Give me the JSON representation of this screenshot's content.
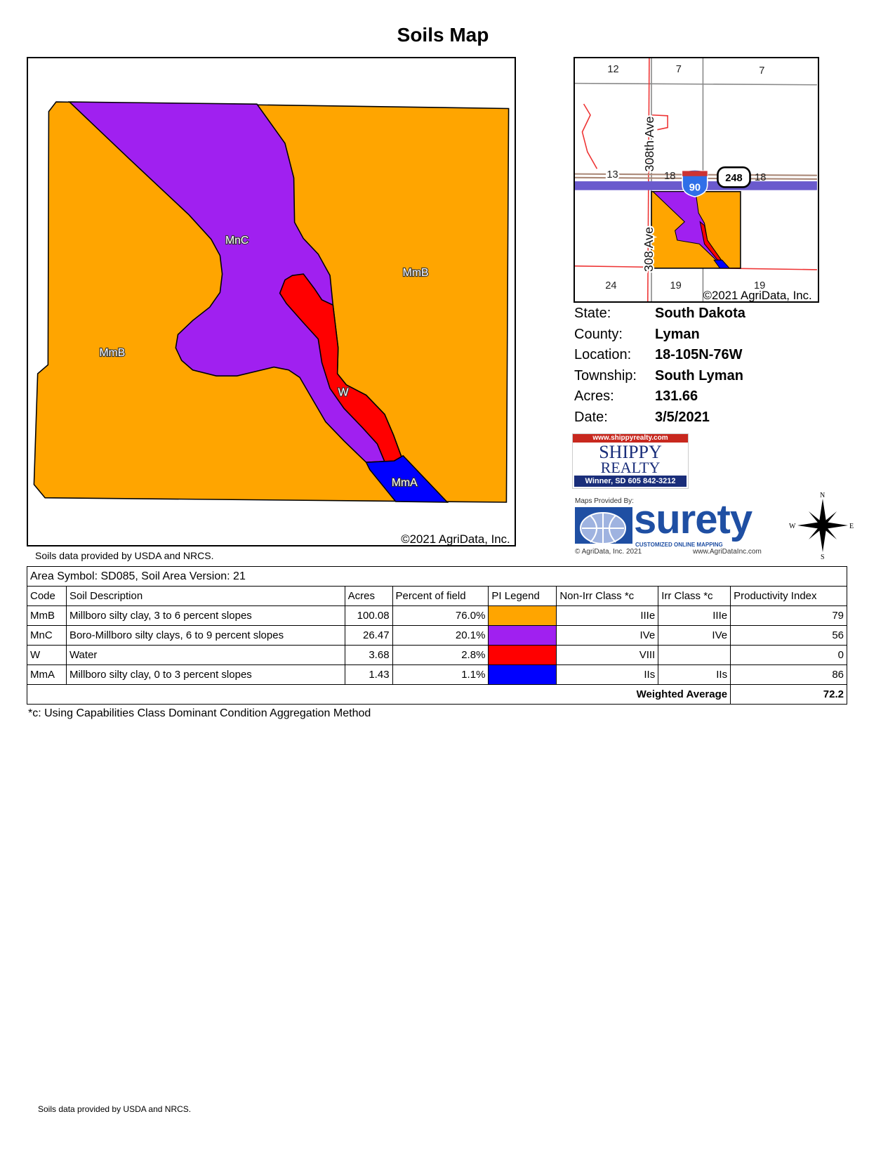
{
  "title": "Soils Map",
  "map": {
    "copyright": "©2021 AgriData, Inc.",
    "labels": {
      "mnc": "MnC",
      "mmb_east": "MmB",
      "mmb_west": "MmB",
      "w": "W",
      "mma": "MmA"
    }
  },
  "inset": {
    "sections": [
      "12",
      "7",
      "7",
      "13",
      "18",
      "18",
      "24",
      "19",
      "19"
    ],
    "road_308th": "308th Ave",
    "road_308": "308 Ave",
    "interstate": "90",
    "state_route": "248",
    "copyright": "©2021 AgriData, Inc."
  },
  "info": [
    {
      "label": "State:",
      "value": "South Dakota"
    },
    {
      "label": "County:",
      "value": "Lyman"
    },
    {
      "label": "Location:",
      "value": "18-105N-76W"
    },
    {
      "label": "Township:",
      "value": "South Lyman"
    },
    {
      "label": "Acres:",
      "value": "131.66"
    },
    {
      "label": "Date:",
      "value": "3/5/2021"
    }
  ],
  "shippy": {
    "url": "www.shippyrealty.com",
    "name1": "SHIPPY",
    "name2": "REALTY",
    "contact": "Winner, SD 605 842-3212"
  },
  "surety": {
    "provided_by": "Maps Provided By:",
    "brand": "surety",
    "tagline": "CUSTOMIZED ONLINE MAPPING",
    "copyright": "© AgriData, Inc. 2021",
    "url": "www.AgriDataInc.com"
  },
  "compass": {
    "n": "N",
    "s": "S",
    "e": "E",
    "w": "W"
  },
  "source_note": "Soils data provided by USDA and NRCS.",
  "table": {
    "area": "Area Symbol: SD085, Soil Area Version: 21",
    "headers": [
      "Code",
      "Soil Description",
      "Acres",
      "Percent of field",
      "PI Legend",
      "Non-Irr Class *c",
      "Irr Class *c",
      "Productivity Index"
    ],
    "rows": [
      {
        "code": "MmB",
        "desc": "Millboro silty clay, 3 to 6 percent slopes",
        "acres": "100.08",
        "pct": "76.0%",
        "color": "#FFA500",
        "nonirr": "IIIe",
        "irr": "IIIe",
        "pi": "79"
      },
      {
        "code": "MnC",
        "desc": "Boro-Millboro silty clays, 6 to 9 percent slopes",
        "acres": "26.47",
        "pct": "20.1%",
        "color": "#A020F0",
        "nonirr": "IVe",
        "irr": "IVe",
        "pi": "56"
      },
      {
        "code": "W",
        "desc": "Water",
        "acres": "3.68",
        "pct": "2.8%",
        "color": "#FF0000",
        "nonirr": "VIII",
        "irr": "",
        "pi": "0"
      },
      {
        "code": "MmA",
        "desc": "Millboro silty clay, 0 to 3 percent slopes",
        "acres": "1.43",
        "pct": "1.1%",
        "color": "#0000FF",
        "nonirr": "IIs",
        "irr": "IIs",
        "pi": "86"
      }
    ],
    "weighted_label": "Weighted Average",
    "weighted_value": "72.2"
  },
  "footnote": "*c:  Using Capabilities Class Dominant Condition Aggregation Method",
  "bottom_note": "Soils data provided by USDA and NRCS."
}
